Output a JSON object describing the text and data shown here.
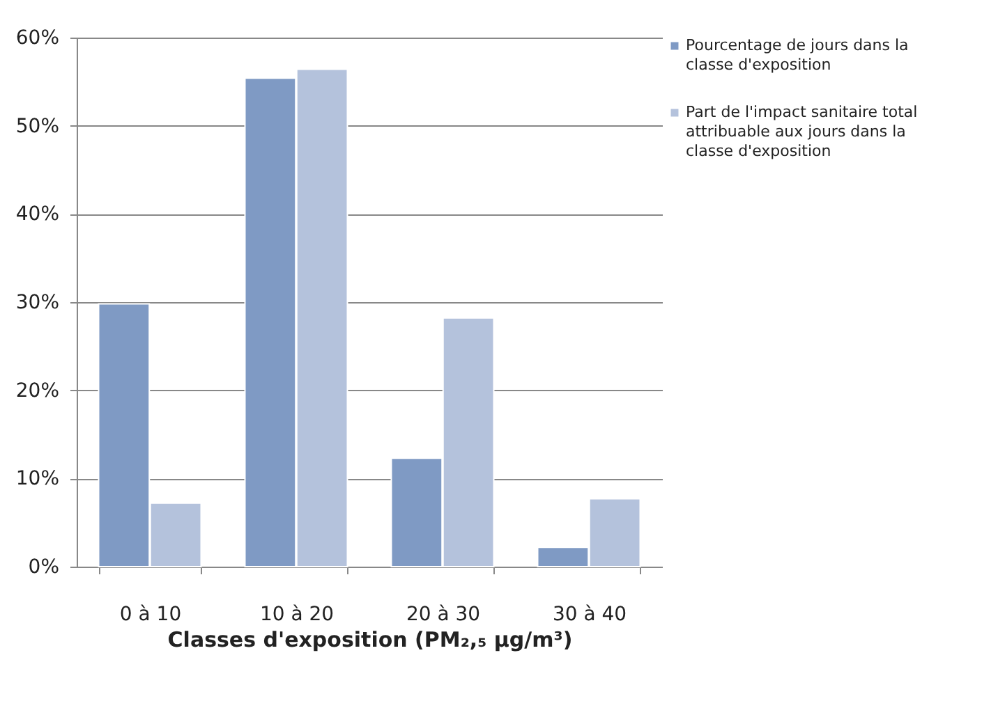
{
  "chart_data": {
    "type": "bar",
    "xlabel": "Classes d'exposition (PM₂,₅ µg/m³)",
    "categories": [
      "0 à 10",
      "10 à 20",
      "20 à 30",
      "30 à 40"
    ],
    "series": [
      {
        "name": "Pourcentage de jours dans la classe d'exposition",
        "color": "#7f9ac4",
        "values": [
          29.8,
          55.4,
          12.3,
          2.2
        ]
      },
      {
        "name": "Part de l'impact sanitaire total attribuable aux jours dans la classe d'exposition",
        "color": "#b4c2dc",
        "values": [
          7.2,
          56.4,
          28.2,
          7.7
        ]
      }
    ],
    "ylim": [
      0,
      60
    ],
    "yticks": [
      {
        "value": 0,
        "label": "0%"
      },
      {
        "value": 10,
        "label": "10%"
      },
      {
        "value": 20,
        "label": "20%"
      },
      {
        "value": 30,
        "label": "30%"
      },
      {
        "value": 40,
        "label": "40%"
      },
      {
        "value": 50,
        "label": "50%"
      },
      {
        "value": 60,
        "label": "60%"
      }
    ],
    "grid": "y",
    "legend": "top right"
  }
}
